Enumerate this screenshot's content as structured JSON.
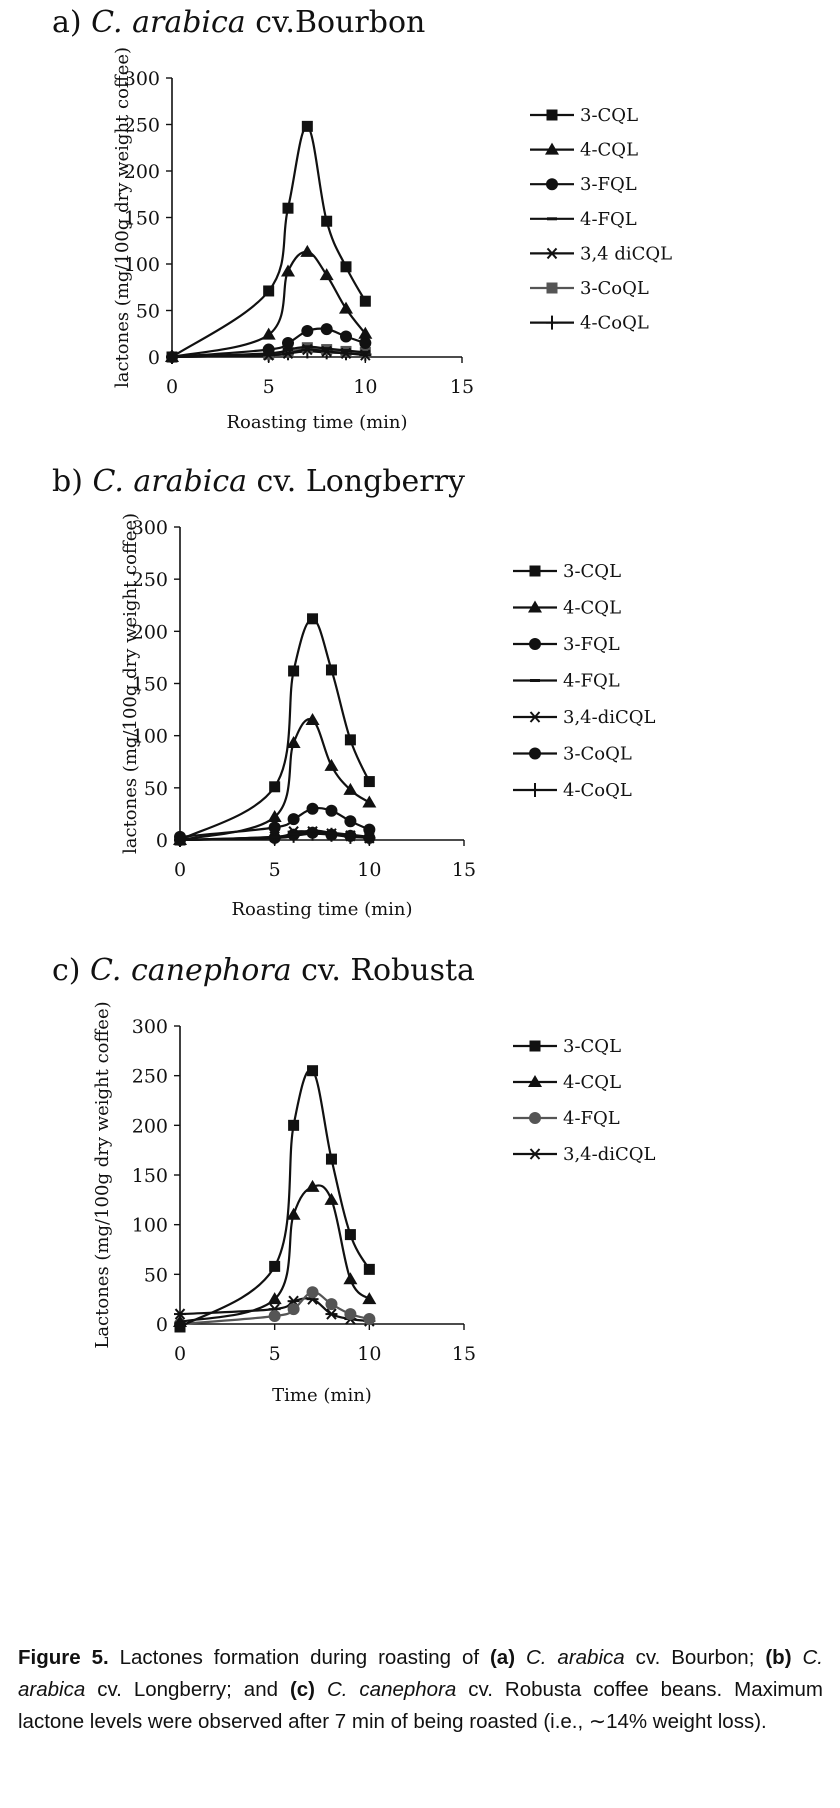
{
  "chart_data": [
    {
      "type": "line",
      "panel_label": "a)",
      "title_genus": "C. arabica",
      "title_cultivar": "cv.Bourbon",
      "xlabel": "Roasting time (min)",
      "ylabel": "lactones (mg/100g dry weight coffee)",
      "xlim": [
        0,
        15
      ],
      "ylim": [
        0,
        300
      ],
      "xticks": [
        "0",
        "5",
        "10",
        "15"
      ],
      "yticks": [
        "0",
        "50",
        "100",
        "150",
        "200",
        "250",
        "300"
      ],
      "x": [
        0,
        5,
        6,
        7,
        8,
        9,
        10
      ],
      "legend_position": "right",
      "series": [
        {
          "name": "3-CQL",
          "marker": "square",
          "color": "#111111",
          "values": [
            0,
            71,
            160,
            248,
            146,
            97,
            60
          ]
        },
        {
          "name": "4-CQL",
          "marker": "triangle",
          "color": "#111111",
          "values": [
            0,
            24,
            92,
            113,
            88,
            52,
            25
          ]
        },
        {
          "name": "3-FQL",
          "marker": "circle",
          "color": "#111111",
          "values": [
            0,
            8,
            15,
            28,
            30,
            22,
            15
          ]
        },
        {
          "name": "4-FQL",
          "marker": "dash",
          "color": "#111111",
          "values": [
            0,
            4,
            8,
            11,
            9,
            7,
            5
          ]
        },
        {
          "name": "3,4 diCQL",
          "marker": "asterisk",
          "color": "#111111",
          "values": [
            0,
            2,
            4,
            8,
            6,
            4,
            2
          ]
        },
        {
          "name": "3-CoQL",
          "marker": "square",
          "color": "#555555",
          "values": [
            0,
            3,
            5,
            10,
            8,
            6,
            5
          ]
        },
        {
          "name": "4-CoQL",
          "marker": "plus",
          "color": "#111111",
          "values": [
            0,
            2,
            4,
            6,
            5,
            4,
            3
          ]
        }
      ]
    },
    {
      "type": "line",
      "panel_label": "b)",
      "title_genus": "C. arabica",
      "title_cultivar": "cv. Longberry",
      "xlabel": "Roasting time (min)",
      "ylabel": "lactones (mg/100g dry weight coffee)",
      "xlim": [
        0,
        15
      ],
      "ylim": [
        0,
        300
      ],
      "xticks": [
        "0",
        "5",
        "10",
        "15"
      ],
      "yticks": [
        "0",
        "50",
        "100",
        "150",
        "200",
        "250",
        "300"
      ],
      "x": [
        0,
        5,
        6,
        7,
        8,
        9,
        10
      ],
      "legend_position": "right",
      "series": [
        {
          "name": "3-CQL",
          "marker": "square",
          "color": "#111111",
          "values": [
            0,
            51,
            162,
            212,
            163,
            96,
            56
          ]
        },
        {
          "name": "4-CQL",
          "marker": "triangle",
          "color": "#111111",
          "values": [
            0,
            22,
            93,
            115,
            71,
            48,
            36
          ]
        },
        {
          "name": "3-FQL",
          "marker": "circle",
          "color": "#111111",
          "values": [
            3,
            12,
            20,
            30,
            28,
            18,
            10
          ]
        },
        {
          "name": "4-FQL",
          "marker": "dash",
          "color": "#111111",
          "values": [
            0,
            3,
            6,
            9,
            7,
            5,
            3
          ]
        },
        {
          "name": "3,4-diCQL",
          "marker": "asterisk",
          "color": "#111111",
          "values": [
            0,
            3,
            8,
            8,
            6,
            4,
            2
          ]
        },
        {
          "name": "3-CoQL",
          "marker": "circle",
          "color": "#111111",
          "values": [
            0,
            2,
            5,
            7,
            5,
            4,
            2
          ]
        },
        {
          "name": "4-CoQL",
          "marker": "plus",
          "color": "#111111",
          "values": [
            0,
            2,
            4,
            6,
            5,
            3,
            2
          ]
        }
      ]
    },
    {
      "type": "line",
      "panel_label": "c)",
      "title_genus": "C. canephora",
      "title_cultivar": "cv. Robusta",
      "xlabel": "Time (min)",
      "ylabel": "Lactones (mg/100g dry weight coffee)",
      "xlim": [
        0,
        15
      ],
      "ylim": [
        0,
        300
      ],
      "xticks": [
        "0",
        "5",
        "10",
        "15"
      ],
      "yticks": [
        "0",
        "50",
        "100",
        "150",
        "200",
        "250",
        "300"
      ],
      "x": [
        0,
        5,
        6,
        7,
        8,
        9,
        10
      ],
      "legend_position": "right",
      "series": [
        {
          "name": "3-CQL",
          "marker": "square",
          "color": "#111111",
          "values": [
            -3,
            58,
            200,
            255,
            166,
            90,
            55
          ]
        },
        {
          "name": "4-CQL",
          "marker": "triangle",
          "color": "#111111",
          "values": [
            2,
            25,
            110,
            138,
            125,
            45,
            25
          ]
        },
        {
          "name": "4-FQL",
          "marker": "circle",
          "color": "#555555",
          "values": [
            0,
            8,
            15,
            32,
            20,
            10,
            5
          ]
        },
        {
          "name": "3,4-diCQL",
          "marker": "asterisk",
          "color": "#111111",
          "values": [
            10,
            15,
            23,
            25,
            10,
            5,
            3
          ]
        }
      ]
    }
  ],
  "caption": {
    "label": "Figure 5.",
    "text_1": "Lactones formation during roasting of",
    "a_key": "(a)",
    "a_genus": "C. arabica",
    "a_cv": "cv. Bourbon;",
    "b_key": "(b)",
    "b_genus": "C. arabica",
    "b_cv": "cv. Longberry; and",
    "c_key": "(c)",
    "c_genus": "C. canephora",
    "c_cv": "cv. Robusta coffee beans. Maximum lactone levels were observed after 7 min of being roasted (i.e., ∼14% weight loss)."
  }
}
